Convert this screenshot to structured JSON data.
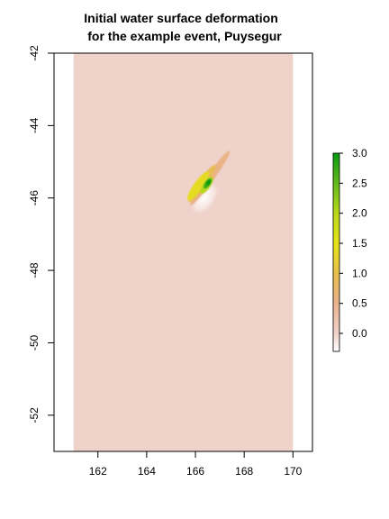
{
  "chart_data": {
    "type": "heatmap",
    "title": "Initial water surface deformation",
    "subtitle": "for the example event, Puysegur",
    "xlabel": "",
    "ylabel": "",
    "xlim": [
      160.2,
      170.8
    ],
    "ylim": [
      -53.0,
      -42.0
    ],
    "x_ticks": [
      162,
      164,
      166,
      168,
      170
    ],
    "y_ticks": [
      -42,
      -44,
      -46,
      -48,
      -50,
      -52
    ],
    "x_tick_labels": [
      "162",
      "164",
      "166",
      "168",
      "170"
    ],
    "y_tick_labels": [
      "-42",
      "-44",
      "-46",
      "-48",
      "-50",
      "-52"
    ],
    "raster_extent": {
      "x": [
        161.0,
        170.0
      ],
      "y": [
        -53.0,
        -42.0
      ]
    },
    "background_value": 0.0,
    "deformation_feature": {
      "orientation": "NE-SW elongated rupture",
      "extent_lon": [
        165.8,
        167.4
      ],
      "extent_lat": [
        -46.2,
        -44.7
      ],
      "peak_value": 3.0,
      "peak_location": [
        166.5,
        -45.6
      ],
      "trough_value": -0.3
    },
    "colorbar": {
      "range": [
        -0.3,
        3.0
      ],
      "ticks": [
        0.0,
        0.5,
        1.0,
        1.5,
        2.0,
        2.5,
        3.0
      ],
      "tick_labels": [
        "0.0",
        "0.5",
        "1.0",
        "1.5",
        "2.0",
        "2.5",
        "3.0"
      ],
      "gradient_stops": [
        {
          "value": -0.3,
          "color": "#ffffff"
        },
        {
          "value": 0.0,
          "color": "#efd2ca"
        },
        {
          "value": 0.5,
          "color": "#e9b28c"
        },
        {
          "value": 1.0,
          "color": "#e8c04a"
        },
        {
          "value": 1.5,
          "color": "#e4e31a"
        },
        {
          "value": 2.0,
          "color": "#b9d81b"
        },
        {
          "value": 2.5,
          "color": "#62bb1d"
        },
        {
          "value": 3.0,
          "color": "#0a9a11"
        }
      ]
    },
    "grid": false,
    "legend": "right"
  }
}
